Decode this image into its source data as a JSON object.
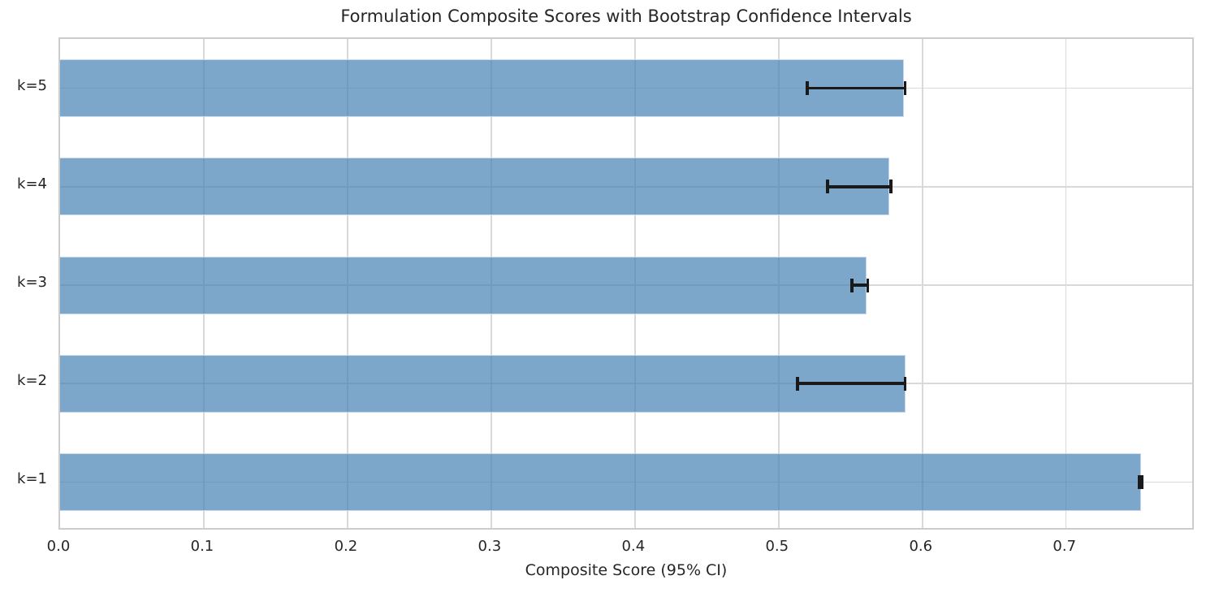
{
  "chart_data": {
    "type": "bar",
    "orientation": "horizontal",
    "title": "Formulation Composite Scores with Bootstrap Confidence Intervals",
    "xlabel": "Composite Score (95% CI)",
    "ylabel": "",
    "categories_top_to_bottom": [
      "k=5",
      "k=4",
      "k=3",
      "k=2",
      "k=1"
    ],
    "series": [
      {
        "name": "Composite Score",
        "values_top_to_bottom": [
          0.587,
          0.577,
          0.561,
          0.588,
          0.752
        ],
        "ci_low_top_to_bottom": [
          0.52,
          0.534,
          0.551,
          0.513,
          0.751
        ],
        "ci_high_top_to_bottom": [
          0.588,
          0.578,
          0.562,
          0.588,
          0.753
        ]
      }
    ],
    "xlim": [
      0.0,
      0.79
    ],
    "xticks": [
      "0.0",
      "0.1",
      "0.2",
      "0.3",
      "0.4",
      "0.5",
      "0.6",
      "0.7"
    ],
    "xtick_values": [
      0.0,
      0.1,
      0.2,
      0.3,
      0.4,
      0.5,
      0.6,
      0.7
    ],
    "grid": "on",
    "legend": "none",
    "colors": {
      "bar_fill": "#4682B4",
      "bar_alpha": 0.7,
      "error_bar": "#1a1a1a",
      "grid_line": "#d9d9d9",
      "axis_spine": "#cccccc",
      "text": "#262626",
      "background": "#ffffff"
    }
  }
}
